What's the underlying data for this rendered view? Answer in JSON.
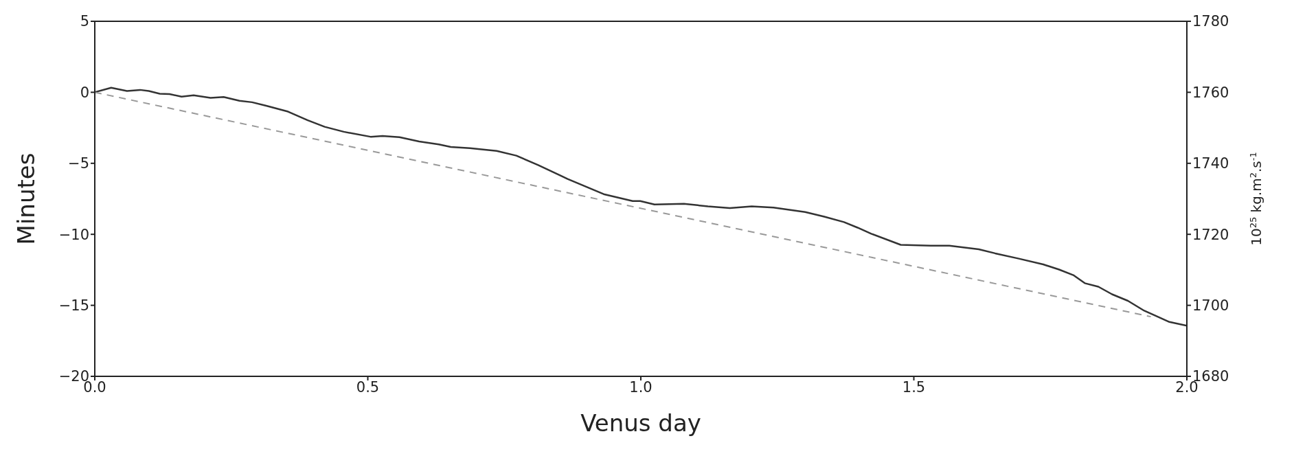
{
  "chart_data": {
    "type": "line",
    "xlabel": "Venus day",
    "ylabel": "Minutes",
    "y2label": "10$^{25}$ kg.m$^{2}$.s$^{-1}$",
    "xlim": [
      0,
      2
    ],
    "xticks": [
      {
        "value": 0,
        "label": "0.0"
      },
      {
        "value": 0.5,
        "label": "0.5"
      },
      {
        "value": 1,
        "label": "1.0"
      },
      {
        "value": 1.5,
        "label": "1.5"
      },
      {
        "value": 2,
        "label": "2.0"
      }
    ],
    "ylim": [
      -20,
      5
    ],
    "yticks": [
      {
        "value": -20,
        "label": "−20"
      },
      {
        "value": -15,
        "label": "−15"
      },
      {
        "value": -10,
        "label": "−10"
      },
      {
        "value": -5,
        "label": "−5"
      },
      0,
      5
    ],
    "y2lim": [
      1680,
      1780
    ],
    "y2ticks": [
      1680,
      1700,
      1720,
      1740,
      1760,
      1780
    ],
    "series": [
      {
        "color": "#333333",
        "line_style": "solid",
        "x": [
          0,
          0.03,
          0.059,
          0.083,
          0.099,
          0.119,
          0.137,
          0.159,
          0.181,
          0.212,
          0.236,
          0.265,
          0.288,
          0.314,
          0.354,
          0.39,
          0.421,
          0.456,
          0.505,
          0.527,
          0.558,
          0.594,
          0.63,
          0.652,
          0.687,
          0.736,
          0.772,
          0.812,
          0.866,
          0.932,
          0.985,
          0.999,
          1.025,
          1.079,
          1.123,
          1.163,
          1.203,
          1.243,
          1.301,
          1.336,
          1.372,
          1.397,
          1.422,
          1.476,
          1.531,
          1.565,
          1.619,
          1.649,
          1.691,
          1.737,
          1.766,
          1.792,
          1.813,
          1.838,
          1.863,
          1.892,
          1.922,
          1.943,
          1.968,
          2.0
        ],
        "values": [
          0,
          0.32,
          0.09,
          0.17,
          0.09,
          -0.1,
          -0.13,
          -0.31,
          -0.21,
          -0.39,
          -0.33,
          -0.6,
          -0.7,
          -0.95,
          -1.36,
          -1.97,
          -2.43,
          -2.78,
          -3.13,
          -3.08,
          -3.16,
          -3.46,
          -3.67,
          -3.85,
          -3.93,
          -4.13,
          -4.46,
          -5.12,
          -6.1,
          -7.17,
          -7.66,
          -7.66,
          -7.9,
          -7.85,
          -8.03,
          -8.15,
          -8.03,
          -8.12,
          -8.43,
          -8.76,
          -9.14,
          -9.53,
          -9.96,
          -10.74,
          -10.8,
          -10.8,
          -11.05,
          -11.34,
          -11.7,
          -12.12,
          -12.48,
          -12.87,
          -13.44,
          -13.69,
          -14.22,
          -14.68,
          -15.38,
          -15.74,
          -16.17,
          -16.44
        ]
      },
      {
        "color": "#999999",
        "line_style": "dashed",
        "axis": "y2",
        "x": [
          0,
          1.934
        ],
        "values": [
          1760,
          1696.8
        ]
      }
    ]
  }
}
